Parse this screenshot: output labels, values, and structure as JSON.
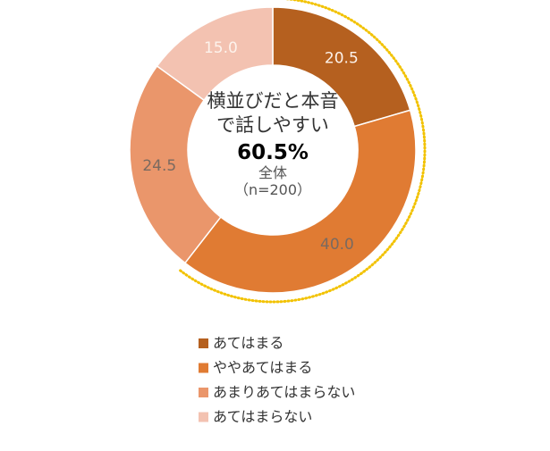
{
  "chart_data": {
    "type": "pie",
    "categories": [
      "あてはまる",
      "ややあてはまる",
      "あまりあてはまらない",
      "あてはまらない"
    ],
    "values": [
      20.5,
      40,
      24.5,
      15
    ],
    "value_labels": [
      "20.5",
      "40.0",
      "24.5",
      "15.0"
    ],
    "colors": [
      "#b5601f",
      "#e07b33",
      "#ea966b",
      "#f3c2b1"
    ],
    "center_title": "横並びだと本音で話しやすい",
    "highlight": {
      "value": 60.5,
      "label": "60.5%"
    },
    "center_note": "全体",
    "center_sample": "（n=200）",
    "highlight_color": "#f2c200"
  }
}
